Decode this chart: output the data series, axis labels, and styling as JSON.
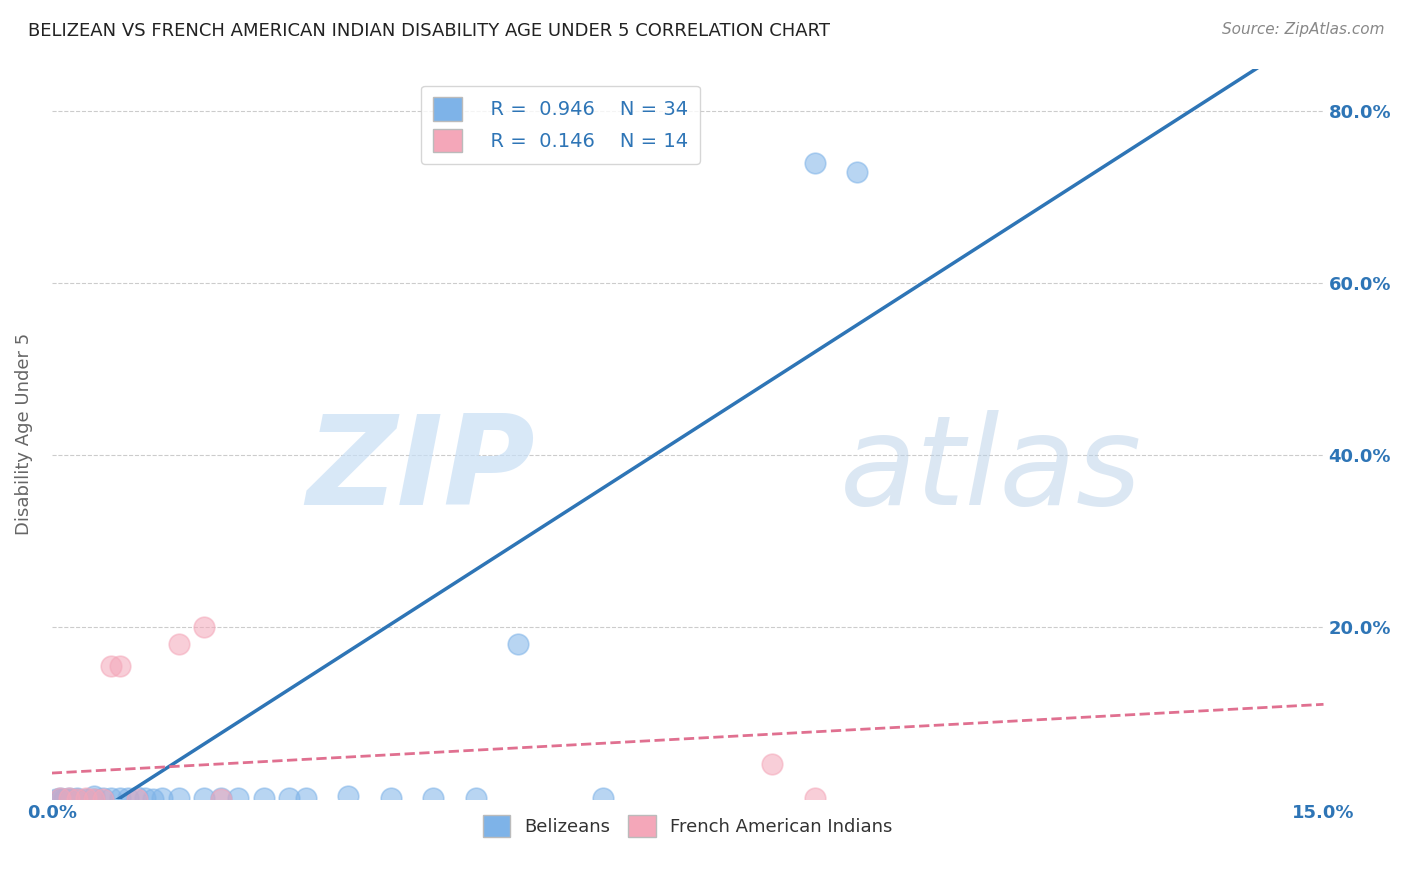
{
  "title": "BELIZEAN VS FRENCH AMERICAN INDIAN DISABILITY AGE UNDER 5 CORRELATION CHART",
  "source": "Source: ZipAtlas.com",
  "ylabel": "Disability Age Under 5",
  "belizean_color": "#7EB3E8",
  "french_color": "#F4A7B9",
  "blue_line_color": "#2E75B6",
  "pink_line_color": "#E07090",
  "background_color": "#FFFFFF",
  "watermark_zip": "ZIP",
  "watermark_atlas": "atlas",
  "belizean_scatter": [
    [
      0.0005,
      0.0
    ],
    [
      0.001,
      0.0
    ],
    [
      0.001,
      0.001
    ],
    [
      0.0015,
      0.0
    ],
    [
      0.002,
      0.0
    ],
    [
      0.002,
      0.001
    ],
    [
      0.003,
      0.0
    ],
    [
      0.003,
      0.001
    ],
    [
      0.004,
      0.0
    ],
    [
      0.005,
      0.0
    ],
    [
      0.005,
      0.003
    ],
    [
      0.006,
      0.001
    ],
    [
      0.007,
      0.001
    ],
    [
      0.008,
      0.001
    ],
    [
      0.009,
      0.001
    ],
    [
      0.01,
      0.002
    ],
    [
      0.011,
      0.001
    ],
    [
      0.012,
      0.0
    ],
    [
      0.013,
      0.001
    ],
    [
      0.015,
      0.001
    ],
    [
      0.018,
      0.001
    ],
    [
      0.02,
      0.001
    ],
    [
      0.022,
      0.001
    ],
    [
      0.025,
      0.001
    ],
    [
      0.028,
      0.001
    ],
    [
      0.03,
      0.001
    ],
    [
      0.035,
      0.003
    ],
    [
      0.04,
      0.001
    ],
    [
      0.045,
      0.001
    ],
    [
      0.05,
      0.001
    ],
    [
      0.055,
      0.18
    ],
    [
      0.065,
      0.001
    ],
    [
      0.09,
      0.74
    ],
    [
      0.095,
      0.73
    ]
  ],
  "french_scatter": [
    [
      0.001,
      0.001
    ],
    [
      0.002,
      0.001
    ],
    [
      0.003,
      0.0
    ],
    [
      0.004,
      0.001
    ],
    [
      0.005,
      0.0
    ],
    [
      0.006,
      0.0
    ],
    [
      0.007,
      0.155
    ],
    [
      0.008,
      0.155
    ],
    [
      0.01,
      0.0
    ],
    [
      0.015,
      0.18
    ],
    [
      0.018,
      0.2
    ],
    [
      0.02,
      0.0
    ],
    [
      0.085,
      0.04
    ],
    [
      0.09,
      0.001
    ]
  ],
  "blue_line": [
    0.0,
    0.15
  ],
  "blue_line_y": [
    -0.05,
    0.9
  ],
  "pink_line": [
    0.0,
    0.15
  ],
  "pink_line_y": [
    0.03,
    0.11
  ],
  "xlim": [
    0.0,
    0.15
  ],
  "ylim": [
    0.0,
    0.85
  ],
  "y_ticks": [
    0.0,
    0.2,
    0.4,
    0.6,
    0.8
  ],
  "y_tick_labels": [
    "",
    "20.0%",
    "40.0%",
    "60.0%",
    "80.0%"
  ],
  "x_ticks": [
    0.0,
    0.03,
    0.06,
    0.09,
    0.12,
    0.15
  ],
  "x_tick_labels": [
    "0.0%",
    "",
    "",
    "",
    "",
    "15.0%"
  ]
}
